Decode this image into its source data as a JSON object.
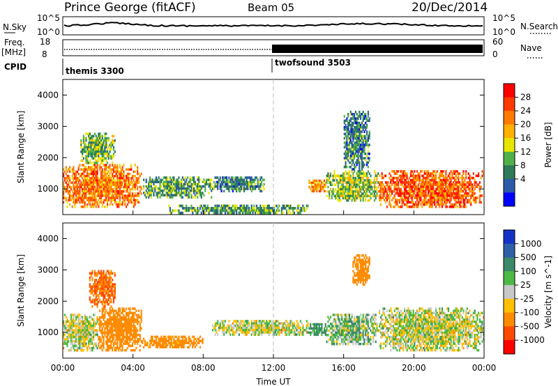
{
  "header": {
    "station": "Prince George (fitACF)",
    "beam": "Beam 05",
    "date": "20/Dec/2014"
  },
  "top_panels": {
    "nsky_label": "N.Sky",
    "nsky_tick_hi": "10^5",
    "nsky_tick_lo": "10^0",
    "nsearch_label": "N.Search",
    "freq_label_1": "Freq.",
    "freq_label_2": "[MHz]",
    "freq_tick_hi": "18",
    "freq_tick_lo": "8",
    "nave_label": "Nave",
    "nave_tick_hi": "60",
    "nave_tick_lo": "0",
    "cpid_label": "CPID",
    "cpid_1": "themis 3300",
    "cpid_2": "twofsound 3503"
  },
  "power_colorbar": {
    "label": "Power [dB]",
    "ticks": [
      "28",
      "24",
      "20",
      "16",
      "12",
      "8",
      "4"
    ],
    "colors": [
      "#ff0000",
      "#ff3a00",
      "#ff7a00",
      "#ffb000",
      "#e6e600",
      "#52b04a",
      "#2f7a58",
      "#2e5aa8",
      "#0000ff"
    ]
  },
  "velocity_colorbar": {
    "label": "Velocity [m s^-1]",
    "ticks": [
      "1000",
      "500",
      "100",
      "25",
      "-25",
      "-100",
      "-500",
      "-1000"
    ],
    "colors": [
      "#1432c8",
      "#2f5fa6",
      "#3c8a6a",
      "#4cb944",
      "#c8c8c8",
      "#ffc000",
      "#ff8c00",
      "#ff4a00",
      "#ff0000"
    ]
  },
  "chart_data": [
    {
      "type": "heatmap",
      "name": "power",
      "ylabel": "Slant Range [km]",
      "ylim": [
        180,
        4500
      ],
      "xlim": [
        0,
        24
      ],
      "yticks": [
        1000,
        2000,
        3000,
        4000
      ],
      "xticks": [
        0,
        4,
        8,
        12,
        16,
        20,
        24
      ],
      "xtick_labels": [
        "00:00",
        "04:00",
        "08:00",
        "12:00",
        "16:00",
        "20:00",
        "00:00"
      ],
      "cpid_switch_hour": 12,
      "echo_regions": [
        {
          "t0": 0.0,
          "t1": 4.5,
          "r0": 400,
          "r1": 1800,
          "p": 24
        },
        {
          "t0": 1.0,
          "t1": 3.0,
          "r0": 1800,
          "r1": 2800,
          "p": 12
        },
        {
          "t0": 4.5,
          "t1": 8.5,
          "r0": 700,
          "r1": 1400,
          "p": 10
        },
        {
          "t0": 8.5,
          "t1": 11.5,
          "r0": 900,
          "r1": 1400,
          "p": 8
        },
        {
          "t0": 6.0,
          "t1": 14.0,
          "r0": 200,
          "r1": 500,
          "p": 10
        },
        {
          "t0": 14.0,
          "t1": 15.0,
          "r0": 900,
          "r1": 1300,
          "p": 22
        },
        {
          "t0": 15.0,
          "t1": 18.0,
          "r0": 600,
          "r1": 1600,
          "p": 14
        },
        {
          "t0": 16.0,
          "t1": 17.5,
          "r0": 1600,
          "r1": 3500,
          "p": 8
        },
        {
          "t0": 18.0,
          "t1": 24.0,
          "r0": 400,
          "r1": 1600,
          "p": 26
        }
      ]
    },
    {
      "type": "heatmap",
      "name": "velocity",
      "ylabel": "Slant Range [km]",
      "xlabel": "Time UT",
      "ylim": [
        180,
        4500
      ],
      "xlim": [
        0,
        24
      ],
      "yticks": [
        1000,
        2000,
        3000,
        4000
      ],
      "xticks": [
        0,
        4,
        8,
        12,
        16,
        20,
        24
      ],
      "xtick_labels": [
        "00:00",
        "04:00",
        "08:00",
        "12:00",
        "16:00",
        "20:00",
        "00:00"
      ],
      "echo_regions": [
        {
          "t0": 0.0,
          "t1": 2.0,
          "r0": 400,
          "r1": 1600,
          "v": -5
        },
        {
          "t0": 2.0,
          "t1": 4.5,
          "r0": 400,
          "r1": 1800,
          "v": -300
        },
        {
          "t0": 1.5,
          "t1": 3.0,
          "r0": 1800,
          "r1": 3000,
          "v": -500
        },
        {
          "t0": 4.5,
          "t1": 8.0,
          "r0": 500,
          "r1": 900,
          "v": -200
        },
        {
          "t0": 8.5,
          "t1": 14.0,
          "r0": 900,
          "r1": 1400,
          "v": 0
        },
        {
          "t0": 14.0,
          "t1": 15.0,
          "r0": 900,
          "r1": 1300,
          "v": 150
        },
        {
          "t0": 15.0,
          "t1": 18.0,
          "r0": 600,
          "r1": 1600,
          "v": 50
        },
        {
          "t0": 16.5,
          "t1": 17.5,
          "r0": 2500,
          "r1": 3500,
          "v": -300
        },
        {
          "t0": 18.0,
          "t1": 24.0,
          "r0": 400,
          "r1": 1800,
          "v": 0
        }
      ]
    }
  ]
}
